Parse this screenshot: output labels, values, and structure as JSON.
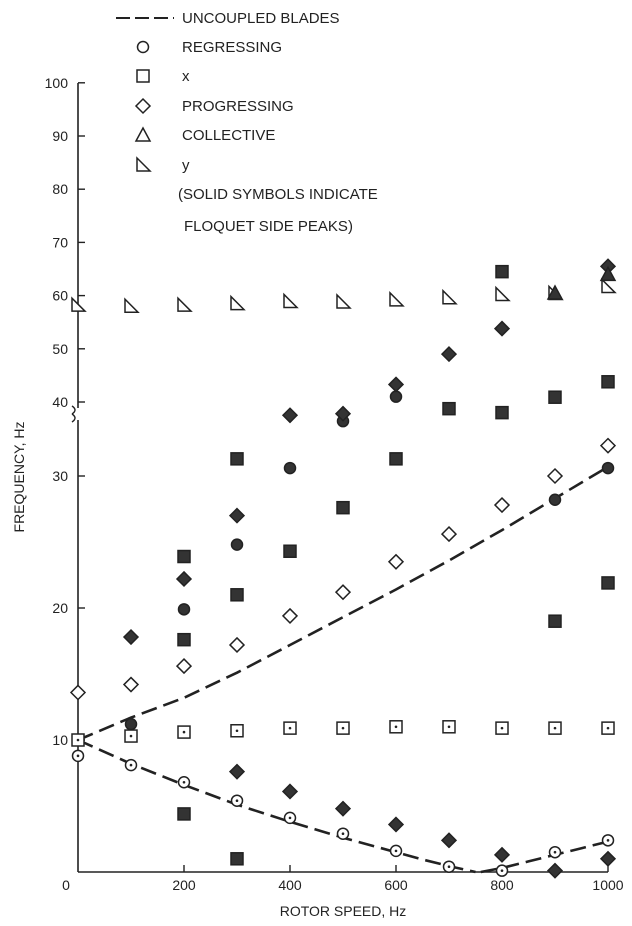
{
  "chart_data": {
    "type": "scatter",
    "xlabel": "ROTOR SPEED, Hz",
    "ylabel": "FREQUENCY, Hz",
    "xlim": [
      0,
      1000
    ],
    "ylim": [
      0,
      100
    ],
    "y_axis_break": "between 35 and 40 Hz",
    "grid": false,
    "legend_position": "top",
    "x_ticks": [
      "0",
      "200",
      "400",
      "600",
      "800",
      "1000"
    ],
    "y_ticks_upper": [
      "40",
      "50",
      "60",
      "70",
      "80",
      "90",
      "100"
    ],
    "y_ticks_lower": [
      "10",
      "20",
      "30"
    ],
    "legend": {
      "items": [
        {
          "marker": "dashed-line",
          "label": "UNCOUPLED BLADES"
        },
        {
          "marker": "circle",
          "label": "REGRESSING"
        },
        {
          "marker": "square",
          "label": "x"
        },
        {
          "marker": "diamond",
          "label": "PROGRESSING"
        },
        {
          "marker": "triangle",
          "label": "COLLECTIVE"
        },
        {
          "marker": "right-triangle",
          "label": "y"
        }
      ],
      "note_lines": [
        "(SOLID SYMBOLS INDICATE",
        "FLOQUET SIDE PEAKS)"
      ]
    },
    "series": [
      {
        "name": "UNCOUPLED BLADES",
        "style": "dashed-line",
        "x": [
          0,
          100,
          200,
          300,
          400,
          500,
          600,
          700,
          800,
          900,
          1000
        ],
        "y": [
          10,
          11.7,
          13.2,
          15.1,
          17.2,
          19.3,
          21.4,
          23.6,
          25.9,
          28.3,
          30.7
        ]
      },
      {
        "name": "UNCOUPLED BLADES",
        "style": "dashed-line",
        "x": [
          0,
          100,
          200,
          300,
          400,
          500,
          600,
          650,
          700,
          750
        ],
        "y": [
          10,
          8.2,
          6.6,
          5.1,
          3.8,
          2.6,
          1.5,
          0.95,
          0.45,
          0
        ]
      },
      {
        "name": "UNCOUPLED BLADES",
        "style": "dashed-line",
        "x": [
          760,
          800,
          850,
          900,
          950,
          1000
        ],
        "y": [
          0,
          0.3,
          0.8,
          1.3,
          1.8,
          2.3
        ]
      },
      {
        "name": "REGRESSING",
        "marker": "circle",
        "filled": false,
        "x": [
          0,
          100,
          200,
          300,
          400,
          500,
          600,
          700,
          800,
          900,
          1000
        ],
        "y": [
          8.8,
          8.1,
          6.8,
          5.4,
          4.1,
          2.9,
          1.6,
          0.4,
          0.1,
          1.5,
          2.4
        ]
      },
      {
        "name": "REGRESSING",
        "marker": "circle",
        "filled": true,
        "x": [
          100,
          200,
          300,
          400,
          500,
          600,
          900,
          1000
        ],
        "y": [
          11.2,
          19.9,
          24.8,
          30.6,
          36.4,
          41,
          28.2,
          30.6
        ]
      },
      {
        "name": "x",
        "marker": "square",
        "filled": false,
        "x": [
          0,
          100,
          200,
          300,
          400,
          500,
          600,
          700,
          800,
          900,
          1000
        ],
        "y": [
          10,
          10.3,
          10.6,
          10.7,
          10.9,
          10.9,
          11,
          11,
          10.9,
          10.9,
          10.9
        ]
      },
      {
        "name": "x",
        "marker": "square",
        "filled": true,
        "x": [
          200,
          200,
          200,
          300,
          300,
          300,
          400,
          500,
          600,
          700,
          800,
          800,
          900,
          900,
          1000,
          1000
        ],
        "y": [
          4.4,
          17.6,
          23.9,
          1.0,
          21.0,
          31.3,
          24.3,
          27.6,
          31.3,
          35.1,
          38.0,
          64.5,
          19.0,
          40.9,
          21.9,
          43.8
        ]
      },
      {
        "name": "PROGRESSING",
        "marker": "diamond",
        "filled": false,
        "x": [
          0,
          100,
          200,
          300,
          400,
          500,
          600,
          700,
          800,
          900,
          1000
        ],
        "y": [
          13.6,
          14.2,
          15.6,
          17.2,
          19.4,
          21.2,
          23.5,
          25.6,
          27.8,
          30,
          32.3
        ]
      },
      {
        "name": "PROGRESSING",
        "marker": "diamond",
        "filled": true,
        "x": [
          100,
          200,
          300,
          300,
          400,
          400,
          500,
          500,
          600,
          600,
          700,
          700,
          800,
          800,
          900,
          1000,
          1000
        ],
        "y": [
          17.8,
          22.2,
          27,
          7.6,
          34.6,
          6.1,
          37.8,
          4.8,
          43.3,
          3.6,
          49,
          2.4,
          53.8,
          1.3,
          0.1,
          65.5,
          1.0
        ]
      },
      {
        "name": "y",
        "marker": "right-triangle",
        "filled": false,
        "x": [
          0,
          100,
          200,
          300,
          400,
          500,
          600,
          700,
          800,
          900,
          1000
        ],
        "y": [
          58.2,
          58,
          58.2,
          58.5,
          58.9,
          58.8,
          59.2,
          59.6,
          60.2,
          60.4,
          61.7
        ]
      },
      {
        "name": "COLLECTIVE",
        "marker": "triangle",
        "filled": true,
        "x": [
          900,
          1000
        ],
        "y": [
          60.5,
          64
        ]
      }
    ]
  }
}
